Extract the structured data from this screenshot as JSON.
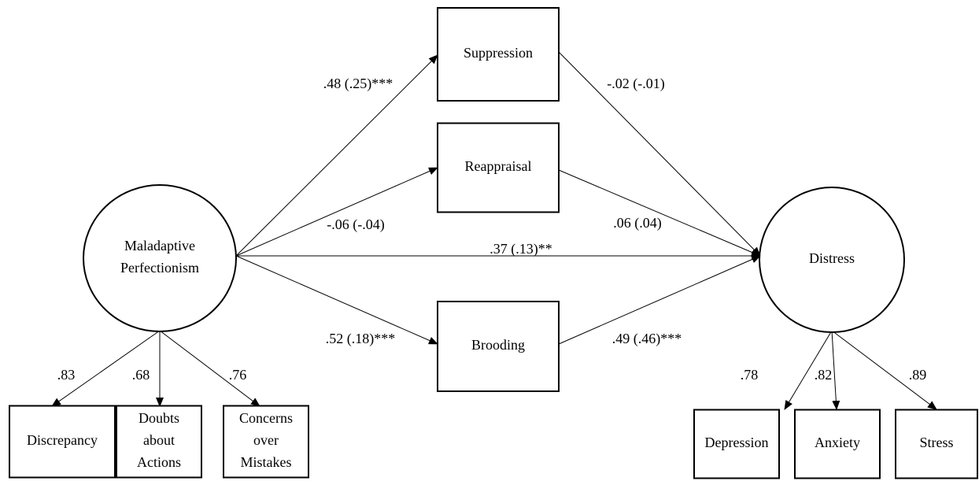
{
  "nodes": [
    {
      "lines": [
        "Maladaptive",
        "Perfectionism"
      ]
    },
    {
      "lines": [
        "Suppression"
      ]
    },
    {
      "lines": [
        "Reappraisal"
      ]
    },
    {
      "lines": [
        "Brooding"
      ]
    },
    {
      "lines": [
        "Distress"
      ]
    },
    {
      "lines": [
        "Discrepancy"
      ]
    },
    {
      "lines": [
        "Doubts",
        "about",
        "Actions"
      ]
    },
    {
      "lines": [
        "Concerns",
        "over",
        "Mistakes"
      ]
    },
    {
      "lines": [
        "Depression"
      ]
    },
    {
      "lines": [
        "Anxiety"
      ]
    },
    {
      "lines": [
        "Stress"
      ]
    }
  ],
  "edges": [
    {
      "label": ".48 (.25)***"
    },
    {
      "label": "-.06 (-.04)"
    },
    {
      "label": ".37 (.13)**"
    },
    {
      "label": ".52 (.18)***"
    },
    {
      "label": "-.02 (-.01)"
    },
    {
      "label": ".06 (.04)"
    },
    {
      "label": ".49 (.46)***"
    },
    {
      "label": ".83"
    },
    {
      "label": ".68"
    },
    {
      "label": ".76"
    },
    {
      "label": ".78"
    },
    {
      "label": ".82"
    },
    {
      "label": ".89"
    }
  ]
}
